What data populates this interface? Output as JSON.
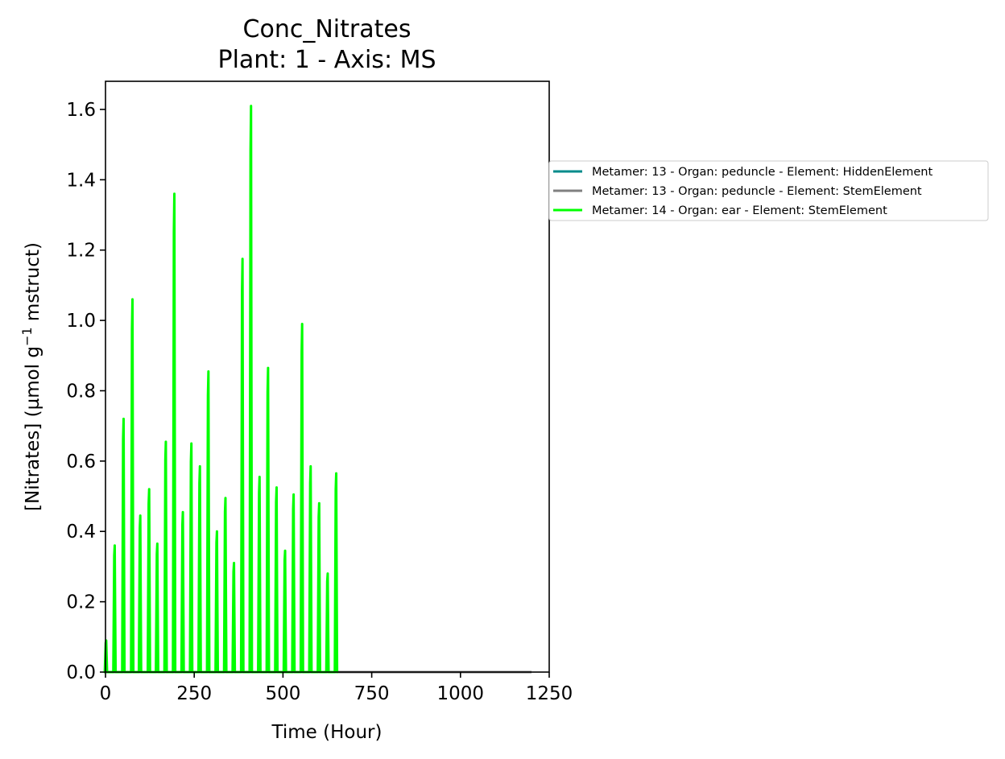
{
  "chart_data": {
    "type": "line",
    "title": "Conc_Nitrates",
    "subtitle": "Plant: 1 - Axis: MS",
    "xlabel": "Time (Hour)",
    "ylabel_main": "[Nitrates] (µmol g",
    "ylabel_exp": "−1",
    "ylabel_tail": " mstruct)",
    "xlim": [
      0,
      1250
    ],
    "ylim": [
      0,
      1.68
    ],
    "x_ticks": [
      0,
      250,
      500,
      750,
      1000,
      1250
    ],
    "x_tick_labels": [
      "0",
      "250",
      "500",
      "750",
      "1000",
      "1250"
    ],
    "y_ticks": [
      0,
      0.2,
      0.4,
      0.6,
      0.8,
      1.0,
      1.2,
      1.4,
      1.6
    ],
    "y_tick_labels": [
      "0.0",
      "0.2",
      "0.4",
      "0.6",
      "0.8",
      "1.0",
      "1.2",
      "1.4",
      "1.6"
    ],
    "grid": false,
    "legend_position": "outside-right",
    "series": [
      {
        "name": "Metamer: 13 - Organ: peduncle - Element: HiddenElement",
        "color": "#008b8b",
        "points": [
          [
            0,
            0
          ],
          [
            1200,
            0
          ]
        ]
      },
      {
        "name": "Metamer: 13 - Organ: peduncle - Element: StemElement",
        "color": "#808080",
        "points": [
          [
            0,
            0
          ],
          [
            1200,
            0
          ]
        ]
      },
      {
        "name": "Metamer: 14 - Organ: ear - Element: StemElement",
        "color": "#00ff00",
        "peaks": [
          [
            2,
            0.09
          ],
          [
            26,
            0.36
          ],
          [
            51,
            0.72
          ],
          [
            76,
            1.06
          ],
          [
            98,
            0.445
          ],
          [
            123,
            0.52
          ],
          [
            146,
            0.365
          ],
          [
            170,
            0.655
          ],
          [
            194,
            1.36
          ],
          [
            218,
            0.455
          ],
          [
            242,
            0.65
          ],
          [
            266,
            0.585
          ],
          [
            290,
            0.855
          ],
          [
            314,
            0.4
          ],
          [
            338,
            0.495
          ],
          [
            362,
            0.31
          ],
          [
            386,
            1.175
          ],
          [
            410,
            1.61
          ],
          [
            434,
            0.555
          ],
          [
            458,
            0.865
          ],
          [
            482,
            0.525
          ],
          [
            506,
            0.345
          ],
          [
            530,
            0.505
          ],
          [
            554,
            0.99
          ],
          [
            578,
            0.585
          ],
          [
            602,
            0.48
          ],
          [
            626,
            0.28
          ],
          [
            650,
            0.565
          ]
        ],
        "end_x": 655
      }
    ]
  }
}
